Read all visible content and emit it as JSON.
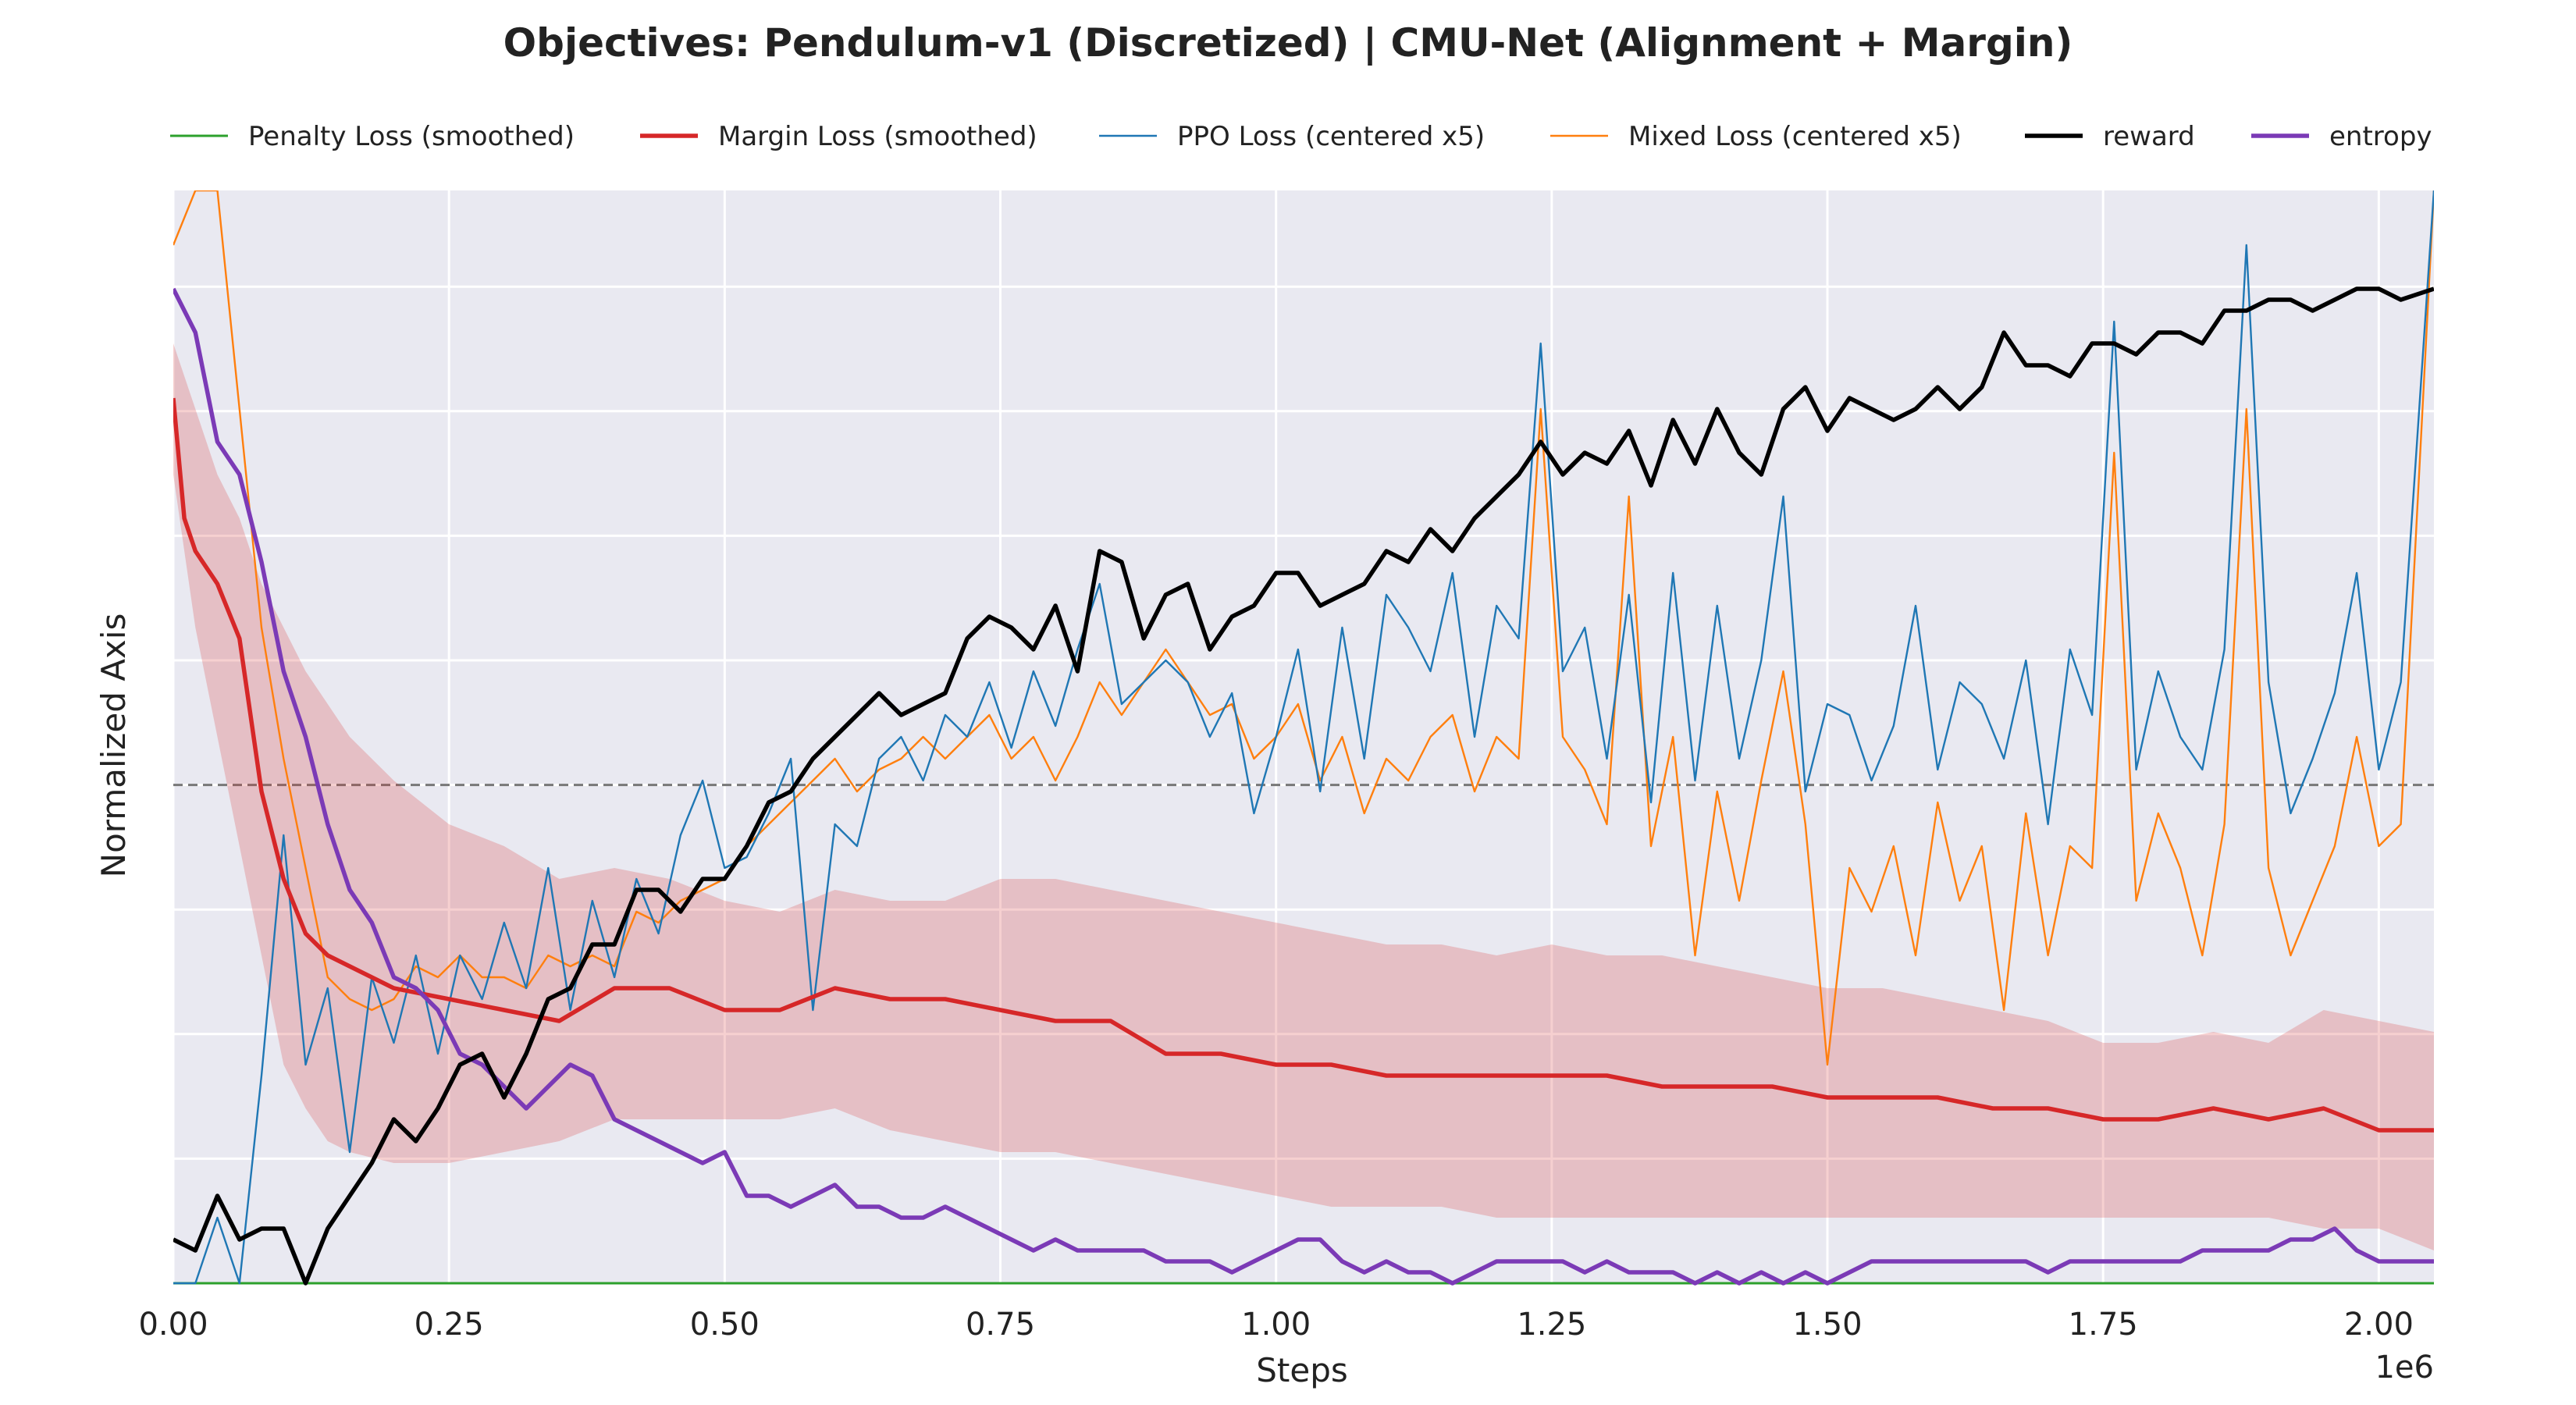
{
  "chart_data": {
    "type": "line",
    "title": "Objectives: Pendulum-v1 (Discretized) | CMU-Net (Alignment + Margin)",
    "xlabel": "Steps",
    "ylabel": "Normalized Axis",
    "x_scale_label": "1e6",
    "xlim": [
      0,
      2.05
    ],
    "ylim": [
      0,
      1
    ],
    "x_ticks": [
      0,
      0.25,
      0.5,
      0.75,
      1.0,
      1.25,
      1.5,
      1.75,
      2.0
    ],
    "x_tick_labels": [
      "0.00",
      "0.25",
      "0.50",
      "0.75",
      "1.00",
      "1.25",
      "1.50",
      "1.75",
      "2.00"
    ],
    "y_gridlines": [
      0.114,
      0.228,
      0.342,
      0.456,
      0.57,
      0.684,
      0.798,
      0.912
    ],
    "reference_line": 0.456,
    "grid": true,
    "legend_position": "top",
    "background": "#e9e9f1",
    "series": [
      {
        "name": "Penalty Loss (smoothed)",
        "color": "#2ca02c",
        "x": [
          0,
          2.05
        ],
        "y": [
          0.0,
          0.0
        ]
      },
      {
        "name": "Margin Loss (smoothed)",
        "color": "#d62728",
        "x": [
          0,
          0.01,
          0.02,
          0.04,
          0.06,
          0.08,
          0.1,
          0.12,
          0.14,
          0.16,
          0.2,
          0.25,
          0.3,
          0.35,
          0.4,
          0.45,
          0.5,
          0.55,
          0.6,
          0.65,
          0.7,
          0.75,
          0.8,
          0.85,
          0.9,
          0.95,
          1.0,
          1.05,
          1.1,
          1.15,
          1.2,
          1.25,
          1.3,
          1.35,
          1.4,
          1.45,
          1.5,
          1.55,
          1.6,
          1.65,
          1.7,
          1.75,
          1.8,
          1.85,
          1.9,
          1.95,
          2.0,
          2.05
        ],
        "y": [
          0.81,
          0.7,
          0.67,
          0.64,
          0.59,
          0.45,
          0.37,
          0.32,
          0.3,
          0.29,
          0.27,
          0.26,
          0.25,
          0.24,
          0.27,
          0.27,
          0.25,
          0.25,
          0.27,
          0.26,
          0.26,
          0.25,
          0.24,
          0.24,
          0.21,
          0.21,
          0.2,
          0.2,
          0.19,
          0.19,
          0.19,
          0.19,
          0.19,
          0.18,
          0.18,
          0.18,
          0.17,
          0.17,
          0.17,
          0.16,
          0.16,
          0.15,
          0.15,
          0.16,
          0.15,
          0.16,
          0.14,
          0.14
        ]
      },
      {
        "name": "PPO Loss (centered x5)",
        "color": "#1f77b4",
        "x": [
          0,
          0.02,
          0.04,
          0.06,
          0.08,
          0.1,
          0.12,
          0.14,
          0.16,
          0.18,
          0.2,
          0.22,
          0.24,
          0.26,
          0.28,
          0.3,
          0.32,
          0.34,
          0.36,
          0.38,
          0.4,
          0.42,
          0.44,
          0.46,
          0.48,
          0.5,
          0.52,
          0.54,
          0.56,
          0.58,
          0.6,
          0.62,
          0.64,
          0.66,
          0.68,
          0.7,
          0.72,
          0.74,
          0.76,
          0.78,
          0.8,
          0.82,
          0.84,
          0.86,
          0.88,
          0.9,
          0.92,
          0.94,
          0.96,
          0.98,
          1.0,
          1.02,
          1.04,
          1.06,
          1.08,
          1.1,
          1.12,
          1.14,
          1.16,
          1.18,
          1.2,
          1.22,
          1.24,
          1.26,
          1.28,
          1.3,
          1.32,
          1.34,
          1.36,
          1.38,
          1.4,
          1.42,
          1.44,
          1.46,
          1.48,
          1.5,
          1.52,
          1.54,
          1.56,
          1.58,
          1.6,
          1.62,
          1.64,
          1.66,
          1.68,
          1.7,
          1.72,
          1.74,
          1.76,
          1.78,
          1.8,
          1.82,
          1.84,
          1.86,
          1.88,
          1.9,
          1.92,
          1.94,
          1.96,
          1.98,
          2.0,
          2.02,
          2.05
        ],
        "y": [
          0.0,
          0.0,
          0.06,
          0.0,
          0.19,
          0.41,
          0.2,
          0.27,
          0.12,
          0.28,
          0.22,
          0.3,
          0.21,
          0.3,
          0.26,
          0.33,
          0.27,
          0.38,
          0.25,
          0.35,
          0.28,
          0.37,
          0.32,
          0.41,
          0.46,
          0.38,
          0.39,
          0.43,
          0.48,
          0.25,
          0.42,
          0.4,
          0.48,
          0.5,
          0.46,
          0.52,
          0.5,
          0.55,
          0.49,
          0.56,
          0.51,
          0.58,
          0.64,
          0.53,
          0.55,
          0.57,
          0.55,
          0.5,
          0.54,
          0.43,
          0.5,
          0.58,
          0.45,
          0.6,
          0.48,
          0.63,
          0.6,
          0.56,
          0.65,
          0.5,
          0.62,
          0.59,
          0.86,
          0.56,
          0.6,
          0.48,
          0.63,
          0.44,
          0.65,
          0.46,
          0.62,
          0.48,
          0.57,
          0.72,
          0.45,
          0.53,
          0.52,
          0.46,
          0.51,
          0.62,
          0.47,
          0.55,
          0.53,
          0.48,
          0.57,
          0.42,
          0.58,
          0.52,
          0.88,
          0.47,
          0.56,
          0.5,
          0.47,
          0.58,
          0.95,
          0.55,
          0.43,
          0.48,
          0.54,
          0.65,
          0.47,
          0.55,
          1.0
        ]
      },
      {
        "name": "Mixed Loss (centered x5)",
        "color": "#ff7f0e",
        "x": [
          0,
          0.02,
          0.04,
          0.06,
          0.08,
          0.1,
          0.12,
          0.14,
          0.16,
          0.18,
          0.2,
          0.22,
          0.24,
          0.26,
          0.28,
          0.3,
          0.32,
          0.34,
          0.36,
          0.38,
          0.4,
          0.42,
          0.44,
          0.46,
          0.48,
          0.5,
          0.52,
          0.54,
          0.56,
          0.58,
          0.6,
          0.62,
          0.64,
          0.66,
          0.68,
          0.7,
          0.72,
          0.74,
          0.76,
          0.78,
          0.8,
          0.82,
          0.84,
          0.86,
          0.88,
          0.9,
          0.92,
          0.94,
          0.96,
          0.98,
          1.0,
          1.02,
          1.04,
          1.06,
          1.08,
          1.1,
          1.12,
          1.14,
          1.16,
          1.18,
          1.2,
          1.22,
          1.24,
          1.26,
          1.28,
          1.3,
          1.32,
          1.34,
          1.36,
          1.38,
          1.4,
          1.42,
          1.44,
          1.46,
          1.48,
          1.5,
          1.52,
          1.54,
          1.56,
          1.58,
          1.6,
          1.62,
          1.64,
          1.66,
          1.68,
          1.7,
          1.72,
          1.74,
          1.76,
          1.78,
          1.8,
          1.82,
          1.84,
          1.86,
          1.88,
          1.9,
          1.92,
          1.94,
          1.96,
          1.98,
          2.0,
          2.02,
          2.05
        ],
        "y": [
          0.95,
          1.0,
          1.0,
          0.8,
          0.6,
          0.48,
          0.38,
          0.28,
          0.26,
          0.25,
          0.26,
          0.29,
          0.28,
          0.3,
          0.28,
          0.28,
          0.27,
          0.3,
          0.29,
          0.3,
          0.29,
          0.34,
          0.33,
          0.35,
          0.36,
          0.37,
          0.4,
          0.42,
          0.44,
          0.46,
          0.48,
          0.45,
          0.47,
          0.48,
          0.5,
          0.48,
          0.5,
          0.52,
          0.48,
          0.5,
          0.46,
          0.5,
          0.55,
          0.52,
          0.55,
          0.58,
          0.55,
          0.52,
          0.53,
          0.48,
          0.5,
          0.53,
          0.46,
          0.5,
          0.43,
          0.48,
          0.46,
          0.5,
          0.52,
          0.45,
          0.5,
          0.48,
          0.8,
          0.5,
          0.47,
          0.42,
          0.72,
          0.4,
          0.5,
          0.3,
          0.45,
          0.35,
          0.46,
          0.56,
          0.42,
          0.2,
          0.38,
          0.34,
          0.4,
          0.3,
          0.44,
          0.35,
          0.4,
          0.25,
          0.43,
          0.3,
          0.4,
          0.38,
          0.76,
          0.35,
          0.43,
          0.38,
          0.3,
          0.42,
          0.8,
          0.38,
          0.3,
          0.35,
          0.4,
          0.5,
          0.4,
          0.42,
          1.0
        ]
      },
      {
        "name": "reward",
        "color": "#000000",
        "x": [
          0,
          0.02,
          0.04,
          0.06,
          0.08,
          0.1,
          0.12,
          0.14,
          0.16,
          0.18,
          0.2,
          0.22,
          0.24,
          0.26,
          0.28,
          0.3,
          0.32,
          0.34,
          0.36,
          0.38,
          0.4,
          0.42,
          0.44,
          0.46,
          0.48,
          0.5,
          0.52,
          0.54,
          0.56,
          0.58,
          0.6,
          0.62,
          0.64,
          0.66,
          0.68,
          0.7,
          0.72,
          0.74,
          0.76,
          0.78,
          0.8,
          0.82,
          0.84,
          0.86,
          0.88,
          0.9,
          0.92,
          0.94,
          0.96,
          0.98,
          1.0,
          1.02,
          1.04,
          1.06,
          1.08,
          1.1,
          1.12,
          1.14,
          1.16,
          1.18,
          1.2,
          1.22,
          1.24,
          1.26,
          1.28,
          1.3,
          1.32,
          1.34,
          1.36,
          1.38,
          1.4,
          1.42,
          1.44,
          1.46,
          1.48,
          1.5,
          1.52,
          1.54,
          1.56,
          1.58,
          1.6,
          1.62,
          1.64,
          1.66,
          1.68,
          1.7,
          1.72,
          1.74,
          1.76,
          1.78,
          1.8,
          1.82,
          1.84,
          1.86,
          1.88,
          1.9,
          1.92,
          1.94,
          1.96,
          1.98,
          2.0,
          2.02,
          2.05
        ],
        "y": [
          0.04,
          0.03,
          0.08,
          0.04,
          0.05,
          0.05,
          0.0,
          0.05,
          0.08,
          0.11,
          0.15,
          0.13,
          0.16,
          0.2,
          0.21,
          0.17,
          0.21,
          0.26,
          0.27,
          0.31,
          0.31,
          0.36,
          0.36,
          0.34,
          0.37,
          0.37,
          0.4,
          0.44,
          0.45,
          0.48,
          0.5,
          0.52,
          0.54,
          0.52,
          0.53,
          0.54,
          0.59,
          0.61,
          0.6,
          0.58,
          0.62,
          0.56,
          0.67,
          0.66,
          0.59,
          0.63,
          0.64,
          0.58,
          0.61,
          0.62,
          0.65,
          0.65,
          0.62,
          0.63,
          0.64,
          0.67,
          0.66,
          0.69,
          0.67,
          0.7,
          0.72,
          0.74,
          0.77,
          0.74,
          0.76,
          0.75,
          0.78,
          0.73,
          0.79,
          0.75,
          0.8,
          0.76,
          0.74,
          0.8,
          0.82,
          0.78,
          0.81,
          0.8,
          0.79,
          0.8,
          0.82,
          0.8,
          0.82,
          0.87,
          0.84,
          0.84,
          0.83,
          0.86,
          0.86,
          0.85,
          0.87,
          0.87,
          0.86,
          0.89,
          0.89,
          0.9,
          0.9,
          0.89,
          0.9,
          0.91,
          0.91,
          0.9,
          0.91
        ]
      },
      {
        "name": "entropy",
        "color": "#7b3ab6",
        "x": [
          0,
          0.02,
          0.04,
          0.06,
          0.08,
          0.1,
          0.12,
          0.14,
          0.16,
          0.18,
          0.2,
          0.22,
          0.24,
          0.26,
          0.28,
          0.3,
          0.32,
          0.34,
          0.36,
          0.38,
          0.4,
          0.42,
          0.44,
          0.46,
          0.48,
          0.5,
          0.52,
          0.54,
          0.56,
          0.58,
          0.6,
          0.62,
          0.64,
          0.66,
          0.68,
          0.7,
          0.72,
          0.74,
          0.76,
          0.78,
          0.8,
          0.82,
          0.84,
          0.86,
          0.88,
          0.9,
          0.92,
          0.94,
          0.96,
          0.98,
          1.0,
          1.02,
          1.04,
          1.06,
          1.08,
          1.1,
          1.12,
          1.14,
          1.16,
          1.18,
          1.2,
          1.22,
          1.24,
          1.26,
          1.28,
          1.3,
          1.32,
          1.34,
          1.36,
          1.38,
          1.4,
          1.42,
          1.44,
          1.46,
          1.48,
          1.5,
          1.52,
          1.54,
          1.56,
          1.58,
          1.6,
          1.62,
          1.64,
          1.66,
          1.68,
          1.7,
          1.72,
          1.74,
          1.76,
          1.78,
          1.8,
          1.82,
          1.84,
          1.86,
          1.88,
          1.9,
          1.92,
          1.94,
          1.96,
          1.98,
          2.0,
          2.02,
          2.05
        ],
        "y": [
          0.91,
          0.87,
          0.77,
          0.74,
          0.66,
          0.56,
          0.5,
          0.42,
          0.36,
          0.33,
          0.28,
          0.27,
          0.25,
          0.21,
          0.2,
          0.18,
          0.16,
          0.18,
          0.2,
          0.19,
          0.15,
          0.14,
          0.13,
          0.12,
          0.11,
          0.12,
          0.08,
          0.08,
          0.07,
          0.08,
          0.09,
          0.07,
          0.07,
          0.06,
          0.06,
          0.07,
          0.06,
          0.05,
          0.04,
          0.03,
          0.04,
          0.03,
          0.03,
          0.03,
          0.03,
          0.02,
          0.02,
          0.02,
          0.01,
          0.02,
          0.03,
          0.04,
          0.04,
          0.02,
          0.01,
          0.02,
          0.01,
          0.01,
          0.0,
          0.01,
          0.02,
          0.02,
          0.02,
          0.02,
          0.01,
          0.02,
          0.01,
          0.01,
          0.01,
          0.0,
          0.01,
          0.0,
          0.01,
          0.0,
          0.01,
          0.0,
          0.01,
          0.02,
          0.02,
          0.02,
          0.02,
          0.02,
          0.02,
          0.02,
          0.02,
          0.01,
          0.02,
          0.02,
          0.02,
          0.02,
          0.02,
          0.02,
          0.03,
          0.03,
          0.03,
          0.03,
          0.04,
          0.04,
          0.05,
          0.03,
          0.02,
          0.02,
          0.02
        ]
      }
    ],
    "band": {
      "series": "Margin Loss (smoothed)",
      "color": "#d62728",
      "opacity": 0.22,
      "x": [
        0,
        0.02,
        0.04,
        0.06,
        0.08,
        0.1,
        0.12,
        0.14,
        0.16,
        0.2,
        0.25,
        0.3,
        0.35,
        0.4,
        0.45,
        0.5,
        0.55,
        0.6,
        0.65,
        0.7,
        0.75,
        0.8,
        0.85,
        0.9,
        0.95,
        1.0,
        1.05,
        1.1,
        1.15,
        1.2,
        1.25,
        1.3,
        1.35,
        1.4,
        1.45,
        1.5,
        1.55,
        1.6,
        1.65,
        1.7,
        1.75,
        1.8,
        1.85,
        1.9,
        1.95,
        2.0,
        2.05
      ],
      "upper": [
        0.86,
        0.8,
        0.74,
        0.7,
        0.64,
        0.6,
        0.56,
        0.53,
        0.5,
        0.46,
        0.42,
        0.4,
        0.37,
        0.38,
        0.37,
        0.35,
        0.34,
        0.36,
        0.35,
        0.35,
        0.37,
        0.37,
        0.36,
        0.35,
        0.34,
        0.33,
        0.32,
        0.31,
        0.31,
        0.3,
        0.31,
        0.3,
        0.3,
        0.29,
        0.28,
        0.27,
        0.27,
        0.26,
        0.25,
        0.24,
        0.22,
        0.22,
        0.23,
        0.22,
        0.25,
        0.24,
        0.23
      ],
      "lower": [
        0.74,
        0.6,
        0.5,
        0.4,
        0.3,
        0.2,
        0.16,
        0.13,
        0.12,
        0.11,
        0.11,
        0.12,
        0.13,
        0.15,
        0.15,
        0.15,
        0.15,
        0.16,
        0.14,
        0.13,
        0.12,
        0.12,
        0.11,
        0.1,
        0.09,
        0.08,
        0.07,
        0.07,
        0.07,
        0.06,
        0.06,
        0.06,
        0.06,
        0.06,
        0.06,
        0.06,
        0.06,
        0.06,
        0.06,
        0.06,
        0.06,
        0.06,
        0.06,
        0.06,
        0.05,
        0.05,
        0.03
      ]
    }
  }
}
